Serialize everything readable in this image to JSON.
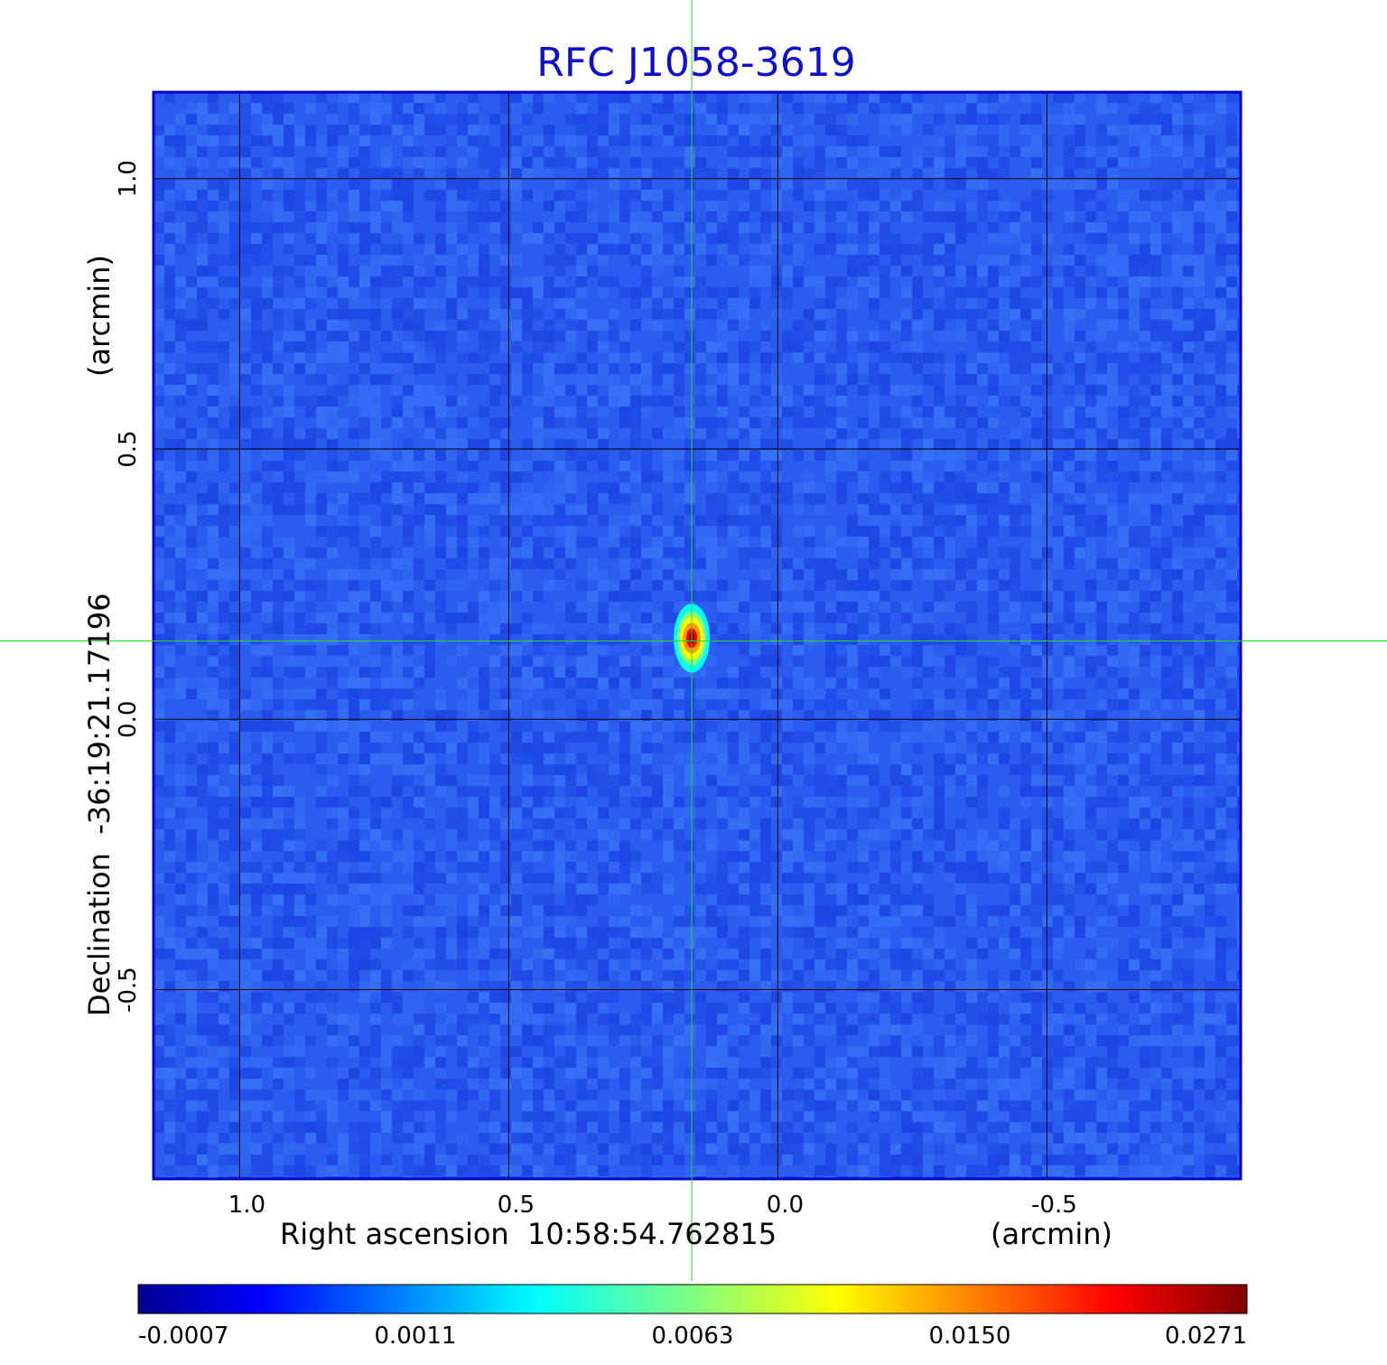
{
  "chart_data": {
    "type": "heatmap",
    "title": "RFC J1058-3619",
    "xlabel": "Right ascension  10:58:54.762815",
    "xunit": "(arcmin)",
    "ylabel": "Declination  -36:19:21.17196",
    "yunit": "(arcmin)",
    "xlim": [
      1.16,
      -0.86
    ],
    "ylim": [
      -0.85,
      1.16
    ],
    "xticks": [
      {
        "value": 1.0,
        "label": "1.0"
      },
      {
        "value": 0.5,
        "label": "0.5"
      },
      {
        "value": 0.0,
        "label": "0.0"
      },
      {
        "value": -0.5,
        "label": "-0.5"
      }
    ],
    "yticks": [
      {
        "value": 1.0,
        "label": "1.0"
      },
      {
        "value": 0.5,
        "label": "0.5"
      },
      {
        "value": 0.0,
        "label": "0.0"
      },
      {
        "value": -0.5,
        "label": "-0.5"
      }
    ],
    "grid": true,
    "crosshair": {
      "x": 0.16,
      "y": 0.145
    },
    "source_peak": {
      "x": 0.16,
      "y": 0.15,
      "value": 0.0271
    },
    "colorbar": {
      "min": -0.0007,
      "max": 0.0271,
      "tick_labels": [
        "-0.0007",
        "0.0011",
        "0.0063",
        "0.0150",
        "0.0271"
      ],
      "colormap": "jet"
    },
    "colors": {
      "title": "#1010cc",
      "background_field": "#2a5cf0",
      "frame": "#0000cc",
      "grid": "#000000",
      "crosshair": "#22dd22"
    }
  }
}
